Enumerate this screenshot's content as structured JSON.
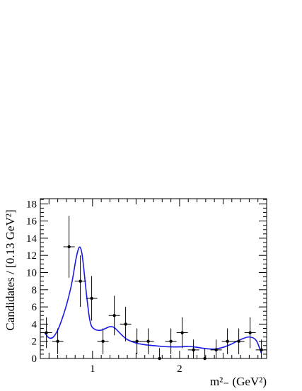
{
  "chart_data": {
    "type": "scatter",
    "title": "",
    "xlabel": "m²₋ (GeV²)",
    "ylabel": "Candidates / [0.13 GeV²]",
    "xlim": [
      0.4,
      3.0
    ],
    "ylim": [
      0,
      18.6
    ],
    "x_ticks": [
      1,
      2
    ],
    "y_ticks": [
      0,
      2,
      4,
      6,
      8,
      10,
      12,
      14,
      16,
      18
    ],
    "grid": false,
    "legend": "none",
    "series": [
      {
        "kind": "points_with_errors",
        "color": "#000000",
        "x": [
          0.47,
          0.6,
          0.73,
          0.86,
          0.99,
          1.12,
          1.25,
          1.38,
          1.51,
          1.64,
          1.77,
          1.9,
          2.03,
          2.16,
          2.29,
          2.42,
          2.55,
          2.68,
          2.81,
          2.94
        ],
        "y": [
          3,
          2,
          13,
          9,
          7,
          2,
          5,
          4,
          2,
          2,
          0,
          2,
          3,
          1,
          0,
          1,
          2,
          2,
          3,
          1
        ],
        "xerr": 0.065,
        "yerr": [
          1.8,
          1.5,
          3.6,
          3.0,
          2.6,
          1.5,
          2.3,
          2.0,
          1.5,
          1.5,
          1.2,
          1.5,
          1.8,
          1.2,
          1.2,
          1.2,
          1.5,
          1.5,
          1.8,
          1.2
        ]
      },
      {
        "kind": "fit_curve",
        "color": "#1a1ae6",
        "x": [
          0.45,
          0.5,
          0.55,
          0.6,
          0.65,
          0.7,
          0.75,
          0.78,
          0.81,
          0.84,
          0.86,
          0.88,
          0.9,
          0.93,
          0.96,
          0.98,
          1.0,
          1.05,
          1.1,
          1.15,
          1.2,
          1.25,
          1.3,
          1.35,
          1.4,
          1.5,
          1.6,
          1.7,
          1.8,
          1.9,
          2.0,
          2.1,
          2.2,
          2.3,
          2.4,
          2.5,
          2.6,
          2.7,
          2.8,
          2.88,
          2.94
        ],
        "y": [
          3.0,
          2.4,
          2.5,
          3.3,
          4.6,
          6.2,
          8.2,
          9.8,
          11.6,
          12.8,
          12.9,
          12.1,
          10.4,
          7.5,
          5.0,
          4.0,
          3.6,
          3.3,
          3.3,
          3.5,
          3.7,
          3.6,
          3.1,
          2.6,
          2.2,
          1.8,
          1.6,
          1.5,
          1.4,
          1.35,
          1.35,
          1.4,
          1.3,
          1.15,
          1.1,
          1.3,
          1.7,
          2.2,
          2.5,
          2.1,
          0.6
        ]
      }
    ]
  }
}
